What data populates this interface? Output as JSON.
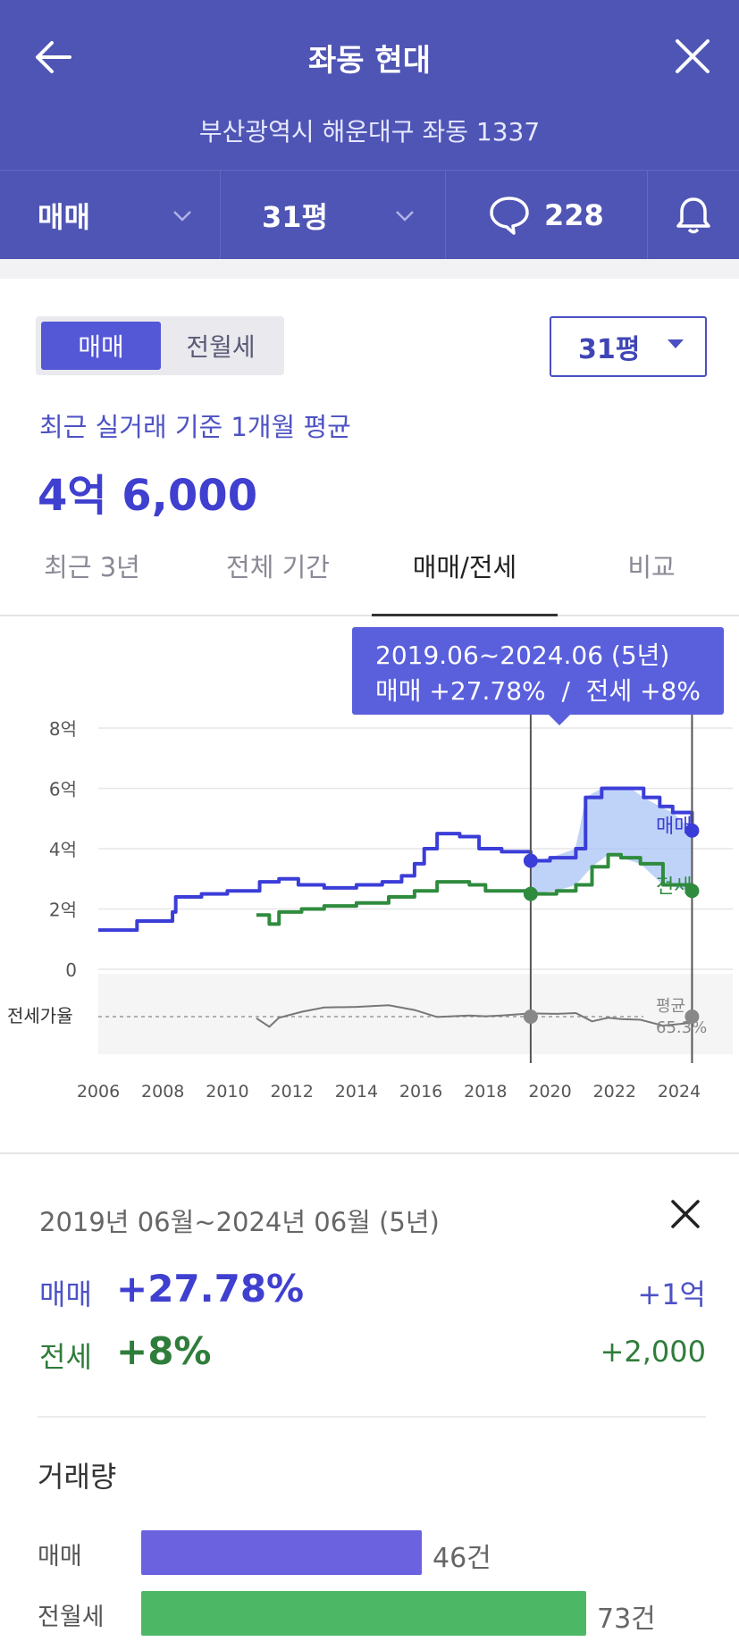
{
  "header": {
    "title": "좌동 현대",
    "address": "부산광역시 해운대구 좌동 1337",
    "deal_type": "매매",
    "size": "31평",
    "comment_count": "228"
  },
  "toggle": {
    "active": "매매",
    "inactive": "전월세"
  },
  "size_select": "31평",
  "avg": {
    "caption": "최근 실거래 기준 1개월 평균",
    "price": "4억 6,000"
  },
  "tabs": [
    "최근 3년",
    "전체 기간",
    "매매/전세",
    "비교"
  ],
  "active_tab": "매매/전세",
  "tooltip": {
    "line1": "2019.06~2024.06 (5년)",
    "line2": "매매 +27.78%  /  전세 +8%"
  },
  "chart_data": {
    "type": "line",
    "y_ticks": [
      "8억",
      "6억",
      "4억",
      "2억",
      "0"
    ],
    "x_ticks": [
      "2006",
      "2008",
      "2010",
      "2012",
      "2014",
      "2016",
      "2018",
      "2020",
      "2022",
      "2024"
    ],
    "ylim": [
      0,
      8
    ],
    "series": [
      {
        "name": "매매",
        "color": "#3b3dd8",
        "x": [
          2006.0,
          2007.2,
          2008.3,
          2008.4,
          2009.2,
          2010.0,
          2011.0,
          2011.6,
          2012.2,
          2013.0,
          2014.0,
          2014.8,
          2015.4,
          2015.8,
          2016.1,
          2016.5,
          2017.2,
          2017.8,
          2018.5,
          2019.4,
          2020.0,
          2020.8,
          2021.1,
          2021.6,
          2022.0,
          2022.5,
          2022.9,
          2023.4,
          2023.8,
          2024.4
        ],
        "values": [
          1.3,
          1.6,
          1.9,
          2.4,
          2.5,
          2.6,
          2.9,
          3.0,
          2.8,
          2.7,
          2.8,
          2.9,
          3.1,
          3.5,
          4.0,
          4.5,
          4.4,
          4.0,
          3.9,
          3.6,
          3.7,
          4.0,
          5.7,
          6.0,
          6.0,
          6.0,
          5.7,
          5.4,
          5.2,
          4.6
        ]
      },
      {
        "name": "전세",
        "color": "#2f8b3e",
        "x": [
          2010.9,
          2011.3,
          2011.6,
          2012.3,
          2013.0,
          2014.0,
          2015.0,
          2015.8,
          2016.5,
          2017.5,
          2018.0,
          2018.5,
          2019.4,
          2020.2,
          2020.8,
          2021.3,
          2021.8,
          2022.2,
          2022.8,
          2023.5,
          2024.4
        ],
        "values": [
          1.8,
          1.5,
          1.9,
          2.0,
          2.1,
          2.2,
          2.4,
          2.6,
          2.9,
          2.8,
          2.6,
          2.6,
          2.5,
          2.6,
          2.8,
          3.4,
          3.8,
          3.7,
          3.5,
          2.8,
          2.6
        ]
      }
    ],
    "range_start": 2019.4,
    "range_end": 2024.4,
    "ratio_label": "전세가율",
    "ratio_avg_label": "평균",
    "ratio_avg_value": "65.3%"
  },
  "summary": {
    "range": "2019년 06월~2024년 06월 (5년)",
    "sale_label": "매매",
    "sale_pct": "+27.78%",
    "sale_delta": "+1억",
    "jeonse_label": "전세",
    "jeonse_pct": "+8%",
    "jeonse_delta": "+2,000"
  },
  "volume": {
    "title": "거래량",
    "rows": [
      {
        "label": "매매",
        "count": "46건",
        "value": 46,
        "color": "#6b62e0"
      },
      {
        "label": "전월세",
        "count": "73건",
        "value": 73,
        "color": "#4cb866"
      }
    ]
  }
}
